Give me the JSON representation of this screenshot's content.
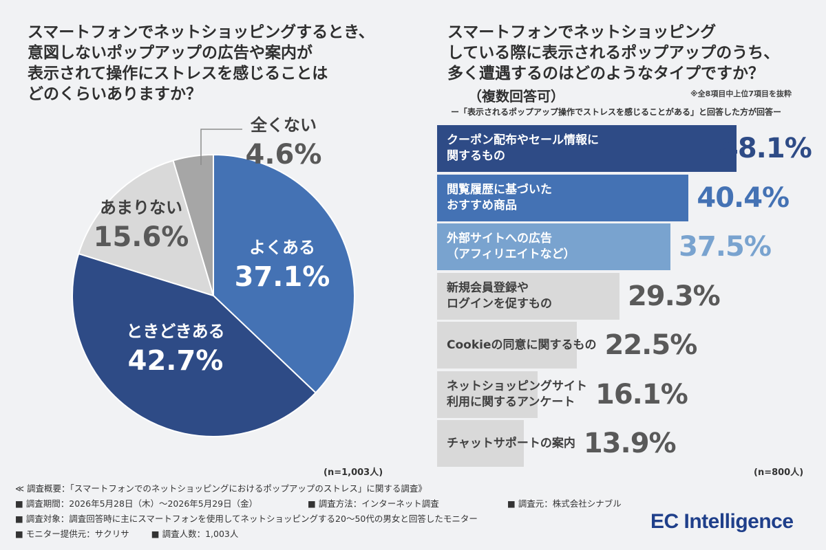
{
  "left": {
    "title": "スマートフォンでネットショッピングするとき、\n意図しないポップアップの広告や案内が\n表示されて操作にストレスを感じることは\nどのくらいありますか？",
    "n_label": "(n=1,003人)"
  },
  "right": {
    "title": "スマートフォンでネットショッピング\nしている際に表示されるポップアップのうち、\n多く遭遇するのはどのようなタイプですか？",
    "subtitle": "（複数回答可）",
    "note": "※全8項目中上位7項目を抜粋",
    "caption": "ー「表示されるポップアップ操作でストレスを感じることがある」と回答した方が回答ー",
    "n_label": "(n=800人)"
  },
  "colors": {
    "navy": "#2e4b86",
    "blue": "#4472b4",
    "light_blue": "#79a3cf",
    "light_gray": "#d9d9d9",
    "mid_gray": "#a6a6a6",
    "text_dark": "#3f3f3f"
  },
  "chart_data": [
    {
      "type": "pie",
      "slices": [
        {
          "label": "よくある",
          "value": 37.1,
          "display": "37.1%",
          "color": "#4472b4"
        },
        {
          "label": "ときどきある",
          "value": 42.7,
          "display": "42.7%",
          "color": "#2e4b86"
        },
        {
          "label": "あまりない",
          "value": 15.6,
          "display": "15.6%",
          "color": "#d9d9d9"
        },
        {
          "label": "全くない",
          "value": 4.6,
          "display": "4.6%",
          "color": "#a6a6a6"
        }
      ]
    },
    {
      "type": "bar",
      "orientation": "horizontal",
      "categories": [
        "クーポン配布やセール情報に\n関するもの",
        "閲覧履歴に基づいた\nおすすめ商品",
        "外部サイトへの広告\n（アフィリエイトなど）",
        "新規会員登録や\nログインを促すもの",
        "Cookieの同意に関するもの",
        "ネットショッピングサイト\n利用に関するアンケート",
        "チャットサポートの案内"
      ],
      "values": [
        48.1,
        40.4,
        37.5,
        29.3,
        22.5,
        16.1,
        13.9
      ],
      "value_labels": [
        "48.1%",
        "40.4%",
        "37.5%",
        "29.3%",
        "22.5%",
        "16.1%",
        "13.9%"
      ],
      "bar_colors": [
        "#2e4b86",
        "#4472b4",
        "#79a3cf",
        "#d9d9d9",
        "#d9d9d9",
        "#d9d9d9",
        "#d9d9d9"
      ],
      "label_colors": [
        "#ffffff",
        "#ffffff",
        "#ffffff",
        "#3f3f3f",
        "#3f3f3f",
        "#3f3f3f",
        "#3f3f3f"
      ],
      "value_colors": [
        "#2e4b86",
        "#4472b4",
        "#79a3cf",
        "#595959",
        "#595959",
        "#595959",
        "#595959"
      ]
    }
  ],
  "footer": {
    "overview": "≪ 調査概要：「スマートフォンでのネットショッピングにおけるポップアップのストレス」に関する調査》",
    "period": "■ 調査期間：2026年5月28日（木）〜2026年5月29日（金）",
    "method": "■ 調査方法：インターネット調査",
    "source": "■ 調査元：株式会社シナブル",
    "target": "■ 調査対象：調査回答時に主にスマートフォンを使用してネットショッピングする20〜50代の男女と回答したモニター",
    "provider": "■ モニター提供元：サクリサ",
    "count": "■ 調査人数：1,003人"
  },
  "logo": "EC Intelligence"
}
